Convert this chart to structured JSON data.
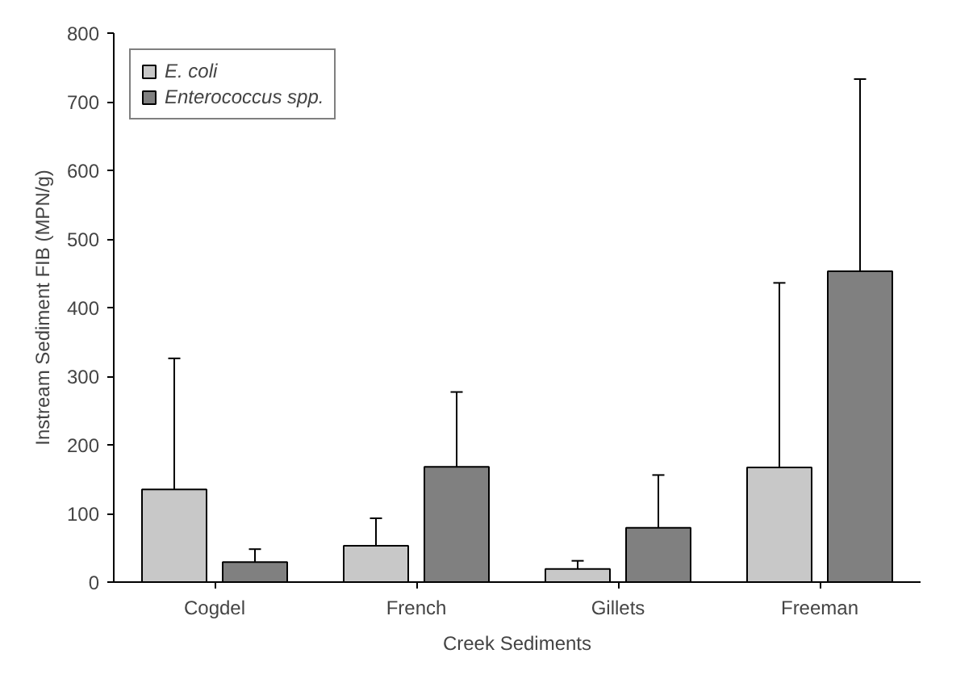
{
  "chart_data": {
    "type": "bar",
    "xlabel": "Creek Sediments",
    "ylabel": "Instream Sediment FIB (MPN/g)",
    "categories": [
      "Cogdel",
      "French",
      "Gillets",
      "Freeman"
    ],
    "series": [
      {
        "name": "E. coli",
        "color": "#c8c8c8",
        "values": [
          135,
          53,
          19,
          167
        ],
        "errors": [
          [
            135,
            326
          ],
          [
            53,
            93
          ],
          [
            19,
            31
          ],
          [
            167,
            436
          ]
        ]
      },
      {
        "name": "Enterococcus spp.",
        "color": "#808080",
        "values": [
          29,
          168,
          79,
          453
        ],
        "errors": [
          [
            29,
            48
          ],
          [
            168,
            277
          ],
          [
            79,
            156
          ],
          [
            453,
            733
          ]
        ]
      }
    ],
    "ylim": [
      0,
      800
    ],
    "yticks": [
      0,
      100,
      200,
      300,
      400,
      500,
      600,
      700,
      800
    ],
    "grid": false,
    "legend": "top left"
  }
}
